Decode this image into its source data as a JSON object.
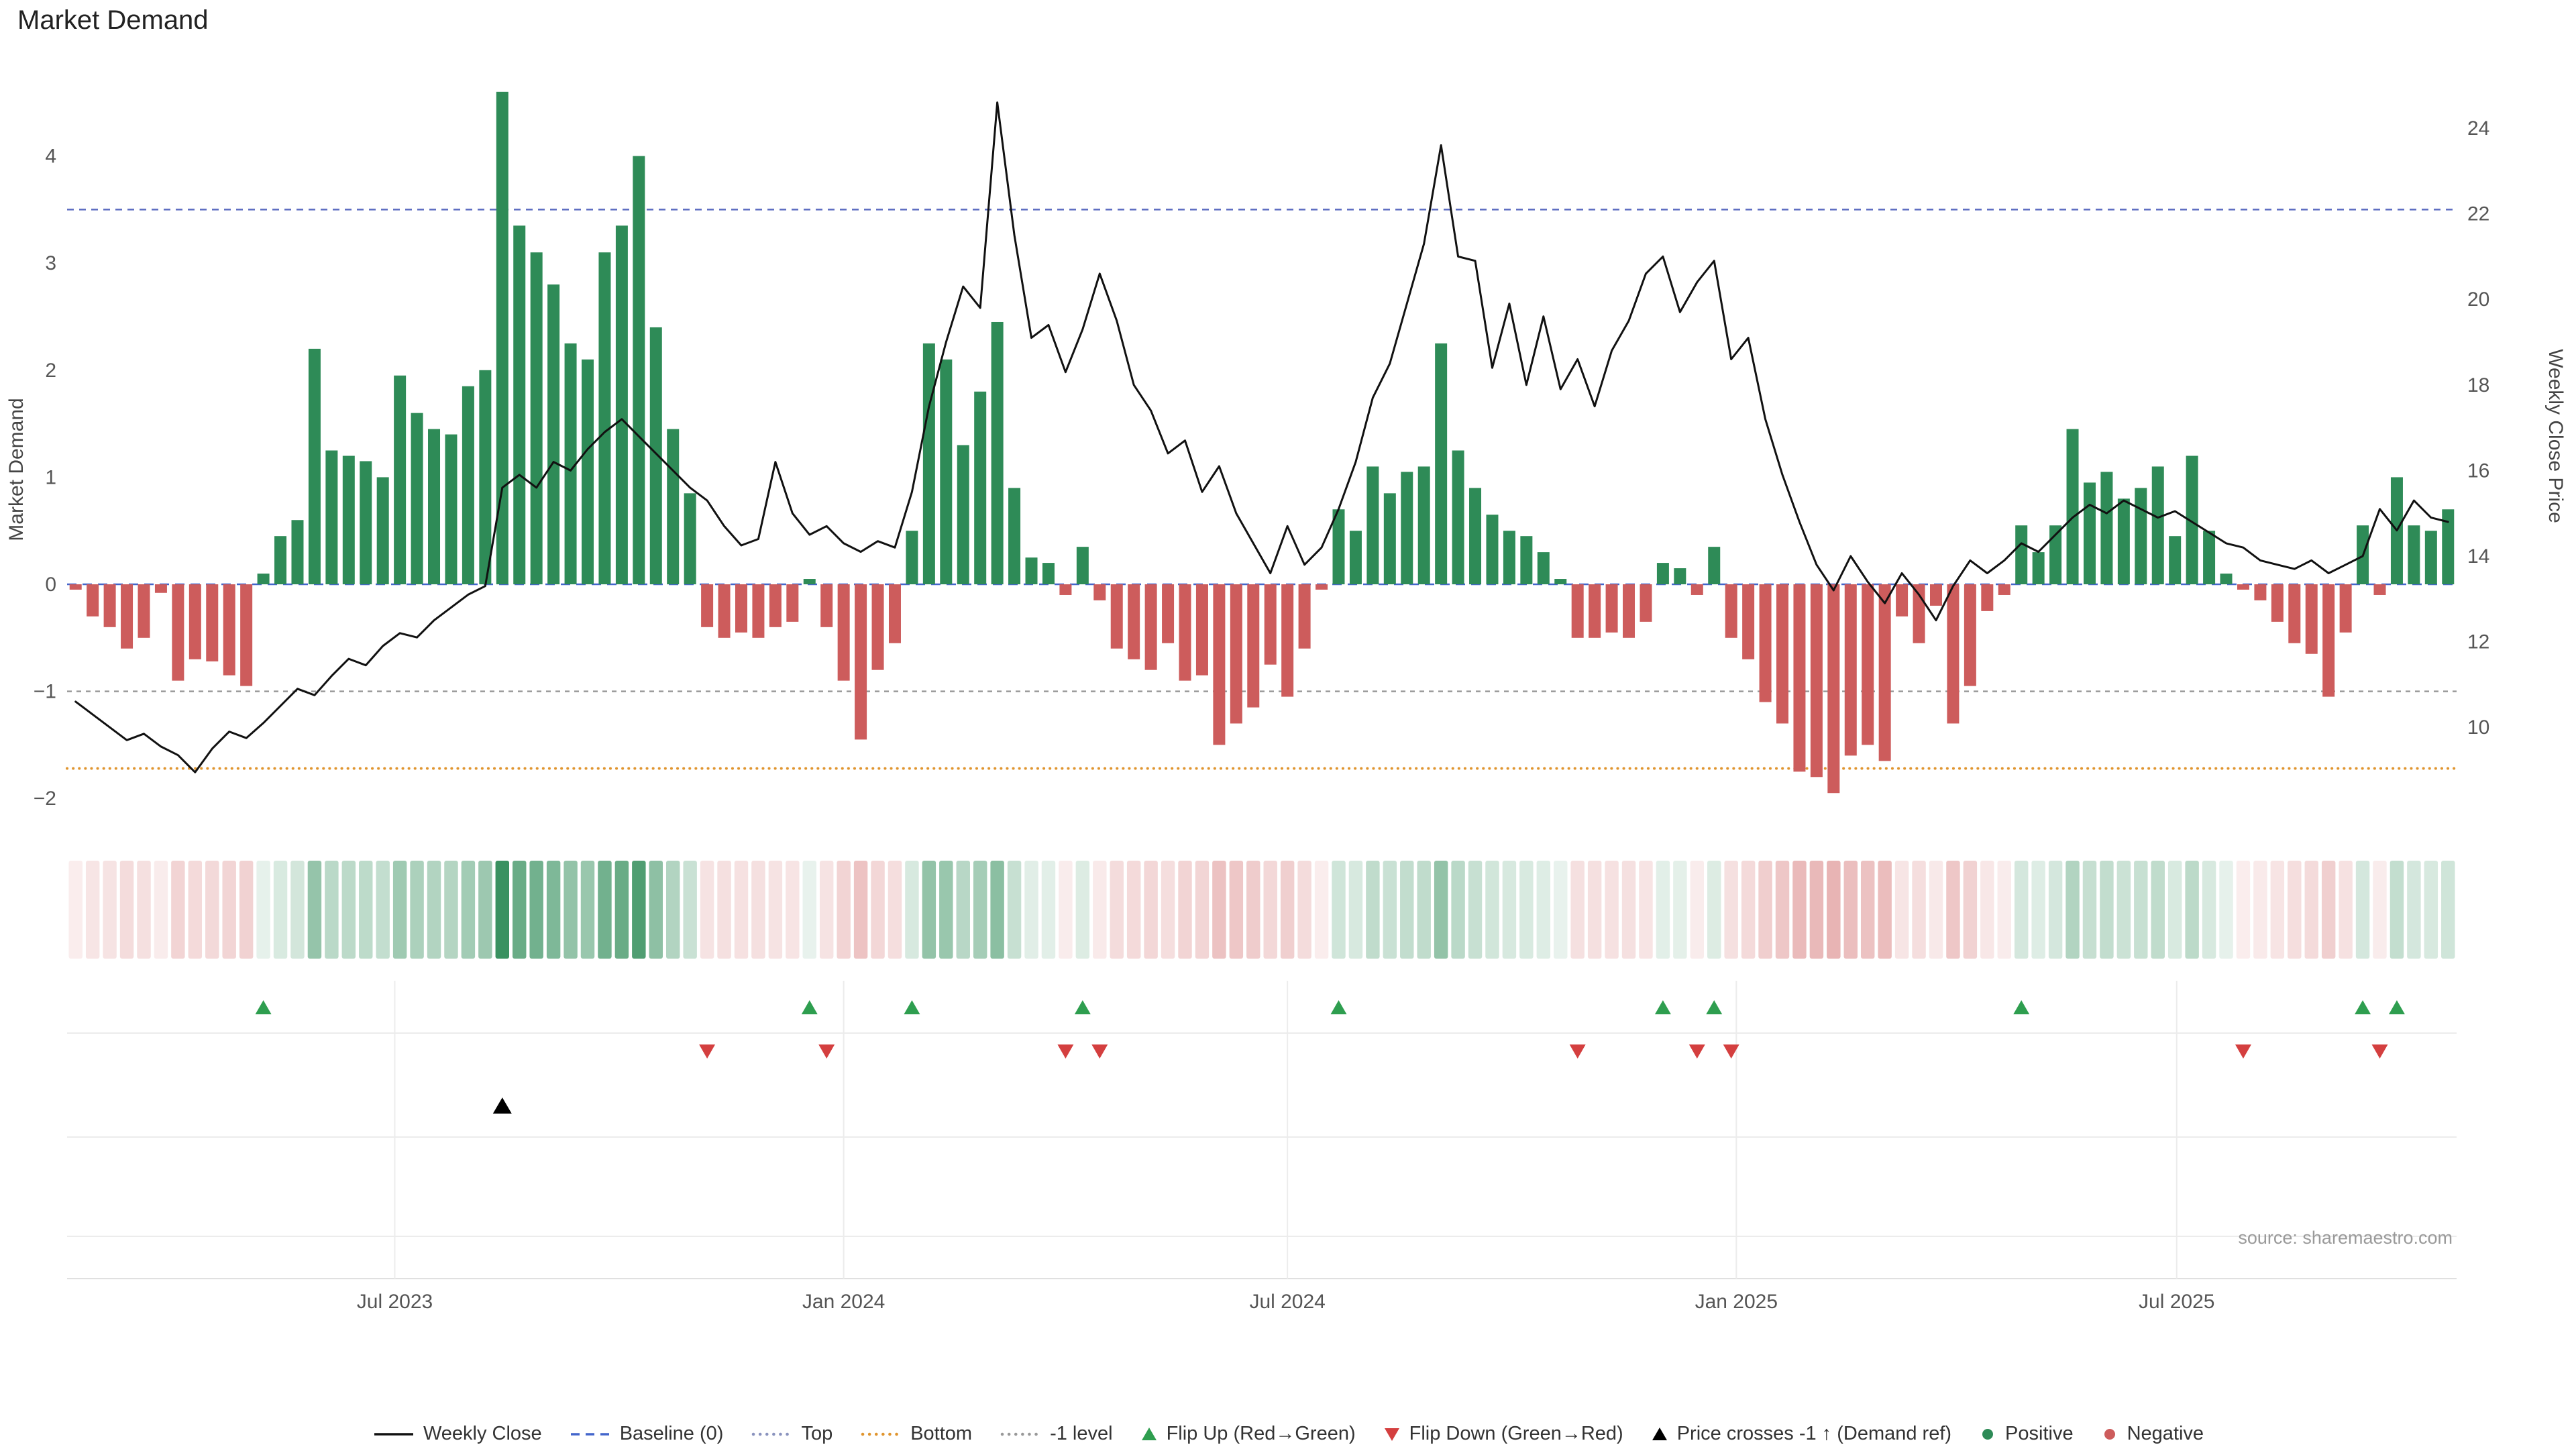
{
  "title": "Market Demand",
  "source": "source: sharemaestro.com",
  "colors": {
    "positive": "#2E8B57",
    "negative": "#CD5C5C",
    "price_line": "#111111",
    "baseline": "#4466CC",
    "top_line": "#5B6BC0",
    "bottom_line": "#E0952F",
    "minus1_line": "#999999",
    "grid": "#ECECEC",
    "tick_label": "#555555",
    "axis_title": "#444444",
    "source_text": "#9A9A9A",
    "flip_up": "#2E9E4F",
    "flip_down": "#D43F3F",
    "price_cross": "#000000"
  },
  "chart_data": {
    "type": "bar+line",
    "title": "Market Demand",
    "x_start": "2023-02-20",
    "frequency": "weekly",
    "n_weeks": 140,
    "bar_series": {
      "name": "Market Demand",
      "values": [
        -0.05,
        -0.3,
        -0.4,
        -0.6,
        -0.5,
        -0.08,
        -0.9,
        -0.7,
        -0.72,
        -0.85,
        -0.95,
        0.1,
        0.45,
        0.6,
        2.2,
        1.25,
        1.2,
        1.15,
        1.0,
        1.95,
        1.6,
        1.45,
        1.4,
        1.85,
        2.0,
        4.6,
        3.35,
        3.1,
        2.8,
        2.25,
        2.1,
        3.1,
        3.35,
        4.0,
        2.4,
        1.45,
        0.85,
        -0.4,
        -0.5,
        -0.45,
        -0.5,
        -0.4,
        -0.35,
        0.05,
        -0.4,
        -0.9,
        -1.45,
        -0.8,
        -0.55,
        0.5,
        2.25,
        2.1,
        1.3,
        1.8,
        2.45,
        0.9,
        0.25,
        0.2,
        -0.1,
        0.35,
        -0.15,
        -0.6,
        -0.7,
        -0.8,
        -0.55,
        -0.9,
        -0.85,
        -1.5,
        -1.3,
        -1.15,
        -0.75,
        -1.05,
        -0.6,
        -0.05,
        0.7,
        0.5,
        1.1,
        0.85,
        1.05,
        1.1,
        2.25,
        1.25,
        0.9,
        0.65,
        0.5,
        0.45,
        0.3,
        0.05,
        -0.5,
        -0.5,
        -0.45,
        -0.5,
        -0.35,
        0.2,
        0.15,
        -0.1,
        0.35,
        -0.5,
        -0.7,
        -1.1,
        -1.3,
        -1.75,
        -1.8,
        -1.95,
        -1.6,
        -1.5,
        -1.65,
        -0.3,
        -0.55,
        -0.2,
        -1.3,
        -0.95,
        -0.25,
        -0.1,
        0.55,
        0.3,
        0.55,
        1.45,
        0.95,
        1.05,
        0.8,
        0.9,
        1.1,
        0.45,
        1.2,
        0.5,
        0.1,
        -0.05,
        -0.15,
        -0.35,
        -0.55,
        -0.65,
        -1.05,
        -0.45,
        0.55,
        -0.1,
        1.0,
        0.55,
        0.5,
        0.7
      ]
    },
    "line_series": {
      "name": "Weekly Close",
      "values": [
        10.6,
        10.3,
        10.0,
        9.7,
        9.85,
        9.55,
        9.35,
        8.95,
        9.5,
        9.9,
        9.75,
        10.1,
        10.5,
        10.9,
        10.75,
        11.2,
        11.6,
        11.45,
        11.9,
        12.2,
        12.1,
        12.5,
        12.8,
        13.1,
        13.3,
        15.6,
        15.9,
        15.6,
        16.2,
        16.0,
        16.5,
        16.9,
        17.2,
        16.8,
        16.4,
        16.0,
        15.6,
        15.3,
        14.7,
        14.25,
        14.4,
        16.2,
        15.0,
        14.5,
        14.7,
        14.3,
        14.1,
        14.35,
        14.2,
        15.5,
        17.5,
        19.0,
        20.3,
        19.8,
        24.6,
        21.5,
        19.1,
        19.4,
        18.3,
        19.3,
        20.6,
        19.5,
        18.0,
        17.4,
        16.4,
        16.7,
        15.5,
        16.1,
        15.0,
        14.3,
        13.6,
        14.7,
        13.8,
        14.2,
        15.1,
        16.2,
        17.7,
        18.5,
        19.9,
        21.3,
        23.6,
        21.0,
        20.9,
        18.4,
        19.9,
        18.0,
        19.6,
        17.9,
        18.6,
        17.5,
        18.8,
        19.5,
        20.6,
        21.0,
        19.7,
        20.4,
        20.9,
        18.6,
        19.1,
        17.2,
        15.9,
        14.8,
        13.8,
        13.2,
        14.0,
        13.4,
        12.9,
        13.6,
        13.1,
        12.5,
        13.3,
        13.9,
        13.6,
        13.9,
        14.3,
        14.1,
        14.5,
        14.9,
        15.2,
        15.0,
        15.3,
        15.1,
        14.9,
        15.05,
        14.8,
        14.55,
        14.3,
        14.2,
        13.9,
        13.8,
        13.7,
        13.9,
        13.6,
        13.8,
        14.0,
        15.1,
        14.6,
        15.3,
        14.9,
        14.8
      ]
    },
    "left_axis": {
      "label": "Market Demand",
      "ticks": [
        4,
        3,
        2,
        1,
        0,
        -1,
        -2
      ],
      "range": [
        -2.32,
        5.0
      ]
    },
    "right_axis": {
      "label": "Weekly Close Price",
      "ticks": [
        24,
        22,
        20,
        18,
        16,
        14,
        12,
        10
      ],
      "range": [
        7.5,
        25.8
      ]
    },
    "x_ticks": [
      {
        "label": "Jul 2023",
        "week_index": 18.7
      },
      {
        "label": "Jan 2024",
        "week_index": 45.0
      },
      {
        "label": "Jul 2024",
        "week_index": 71.0
      },
      {
        "label": "Jan 2025",
        "week_index": 97.3
      },
      {
        "label": "Jul 2025",
        "week_index": 123.1
      }
    ],
    "reference_lines": {
      "baseline": 0,
      "top": 3.5,
      "bottom": -1.72,
      "minus1": -1.0
    },
    "markers": {
      "flip_up_indices": [
        11,
        43,
        49,
        59,
        74,
        93,
        96,
        114,
        134,
        136
      ],
      "flip_down_indices": [
        37,
        44,
        58,
        60,
        88,
        95,
        97,
        127,
        135
      ],
      "price_cross_indices": [
        25
      ]
    },
    "heatmap_strip": {
      "derived_from": "bar_series",
      "max_abs": 4.6
    },
    "grid": "off-main, faint-panel",
    "legend_position": "bottom-center"
  },
  "legend": {
    "items": [
      {
        "label": "Weekly Close",
        "icon": "line-icon",
        "glyph": "line",
        "color": "#111111"
      },
      {
        "label": "Baseline (0)",
        "icon": "dash-line-icon",
        "glyph": "dash",
        "color": "#4466CC"
      },
      {
        "label": "Top",
        "icon": "dotted-line-icon",
        "glyph": "dots",
        "color": "#8A93BE"
      },
      {
        "label": "Bottom",
        "icon": "dotted-line-icon",
        "glyph": "dots",
        "color": "#E0952F"
      },
      {
        "label": "-1 level",
        "icon": "dotted-line-icon",
        "glyph": "dots",
        "color": "#999999"
      },
      {
        "label": "Flip Up (Red→Green)",
        "icon": "triangle-up-icon",
        "glyph": "triangle-up",
        "color": "#2E9E4F"
      },
      {
        "label": "Flip Down (Green→Red)",
        "icon": "triangle-down-icon",
        "glyph": "triangle-down",
        "color": "#D43F3F"
      },
      {
        "label": "Price crosses -1 ↑ (Demand ref)",
        "icon": "triangle-up-icon",
        "glyph": "triangle-up",
        "color": "#000000"
      },
      {
        "label": "Positive",
        "icon": "dot-icon",
        "glyph": "dot",
        "color": "#2E8B57"
      },
      {
        "label": "Negative",
        "icon": "dot-icon",
        "glyph": "dot",
        "color": "#CD5C5C"
      }
    ]
  }
}
